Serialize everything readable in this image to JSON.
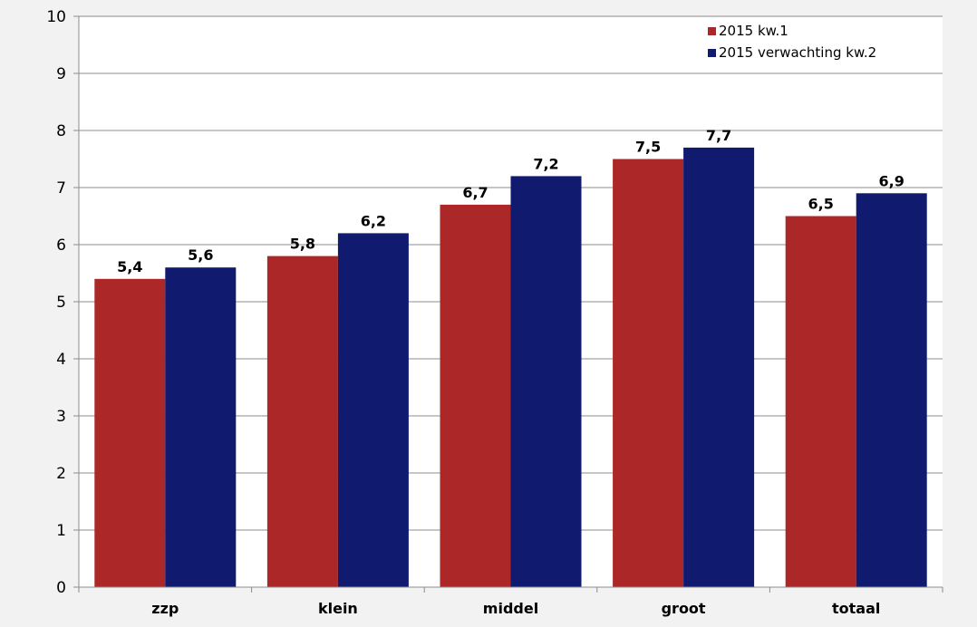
{
  "chart_data": {
    "type": "bar",
    "categories": [
      "zzp",
      "klein",
      "middel",
      "groot",
      "totaal"
    ],
    "series": [
      {
        "name": "2015 kw.1",
        "color": "#ac2728",
        "values": [
          5.4,
          5.8,
          6.7,
          7.5,
          6.5
        ],
        "labels": [
          "5,4",
          "5,8",
          "6,7",
          "7,5",
          "6,5"
        ]
      },
      {
        "name": "2015 verwachting kw.2",
        "color": "#101a6e",
        "values": [
          5.6,
          6.2,
          7.2,
          7.7,
          6.9
        ],
        "labels": [
          "5,6",
          "6,2",
          "7,2",
          "7,7",
          "6,9"
        ]
      }
    ],
    "ylim": [
      0,
      10
    ],
    "yticks": [
      0,
      1,
      2,
      3,
      4,
      5,
      6,
      7,
      8,
      9,
      10
    ],
    "title": "",
    "xlabel": "",
    "ylabel": "",
    "grid": true,
    "legend": "top-right",
    "colors": {
      "plot_background": "#ffffff",
      "page_background": "#f2f2f2",
      "gridline": "#8c8c8c"
    }
  }
}
